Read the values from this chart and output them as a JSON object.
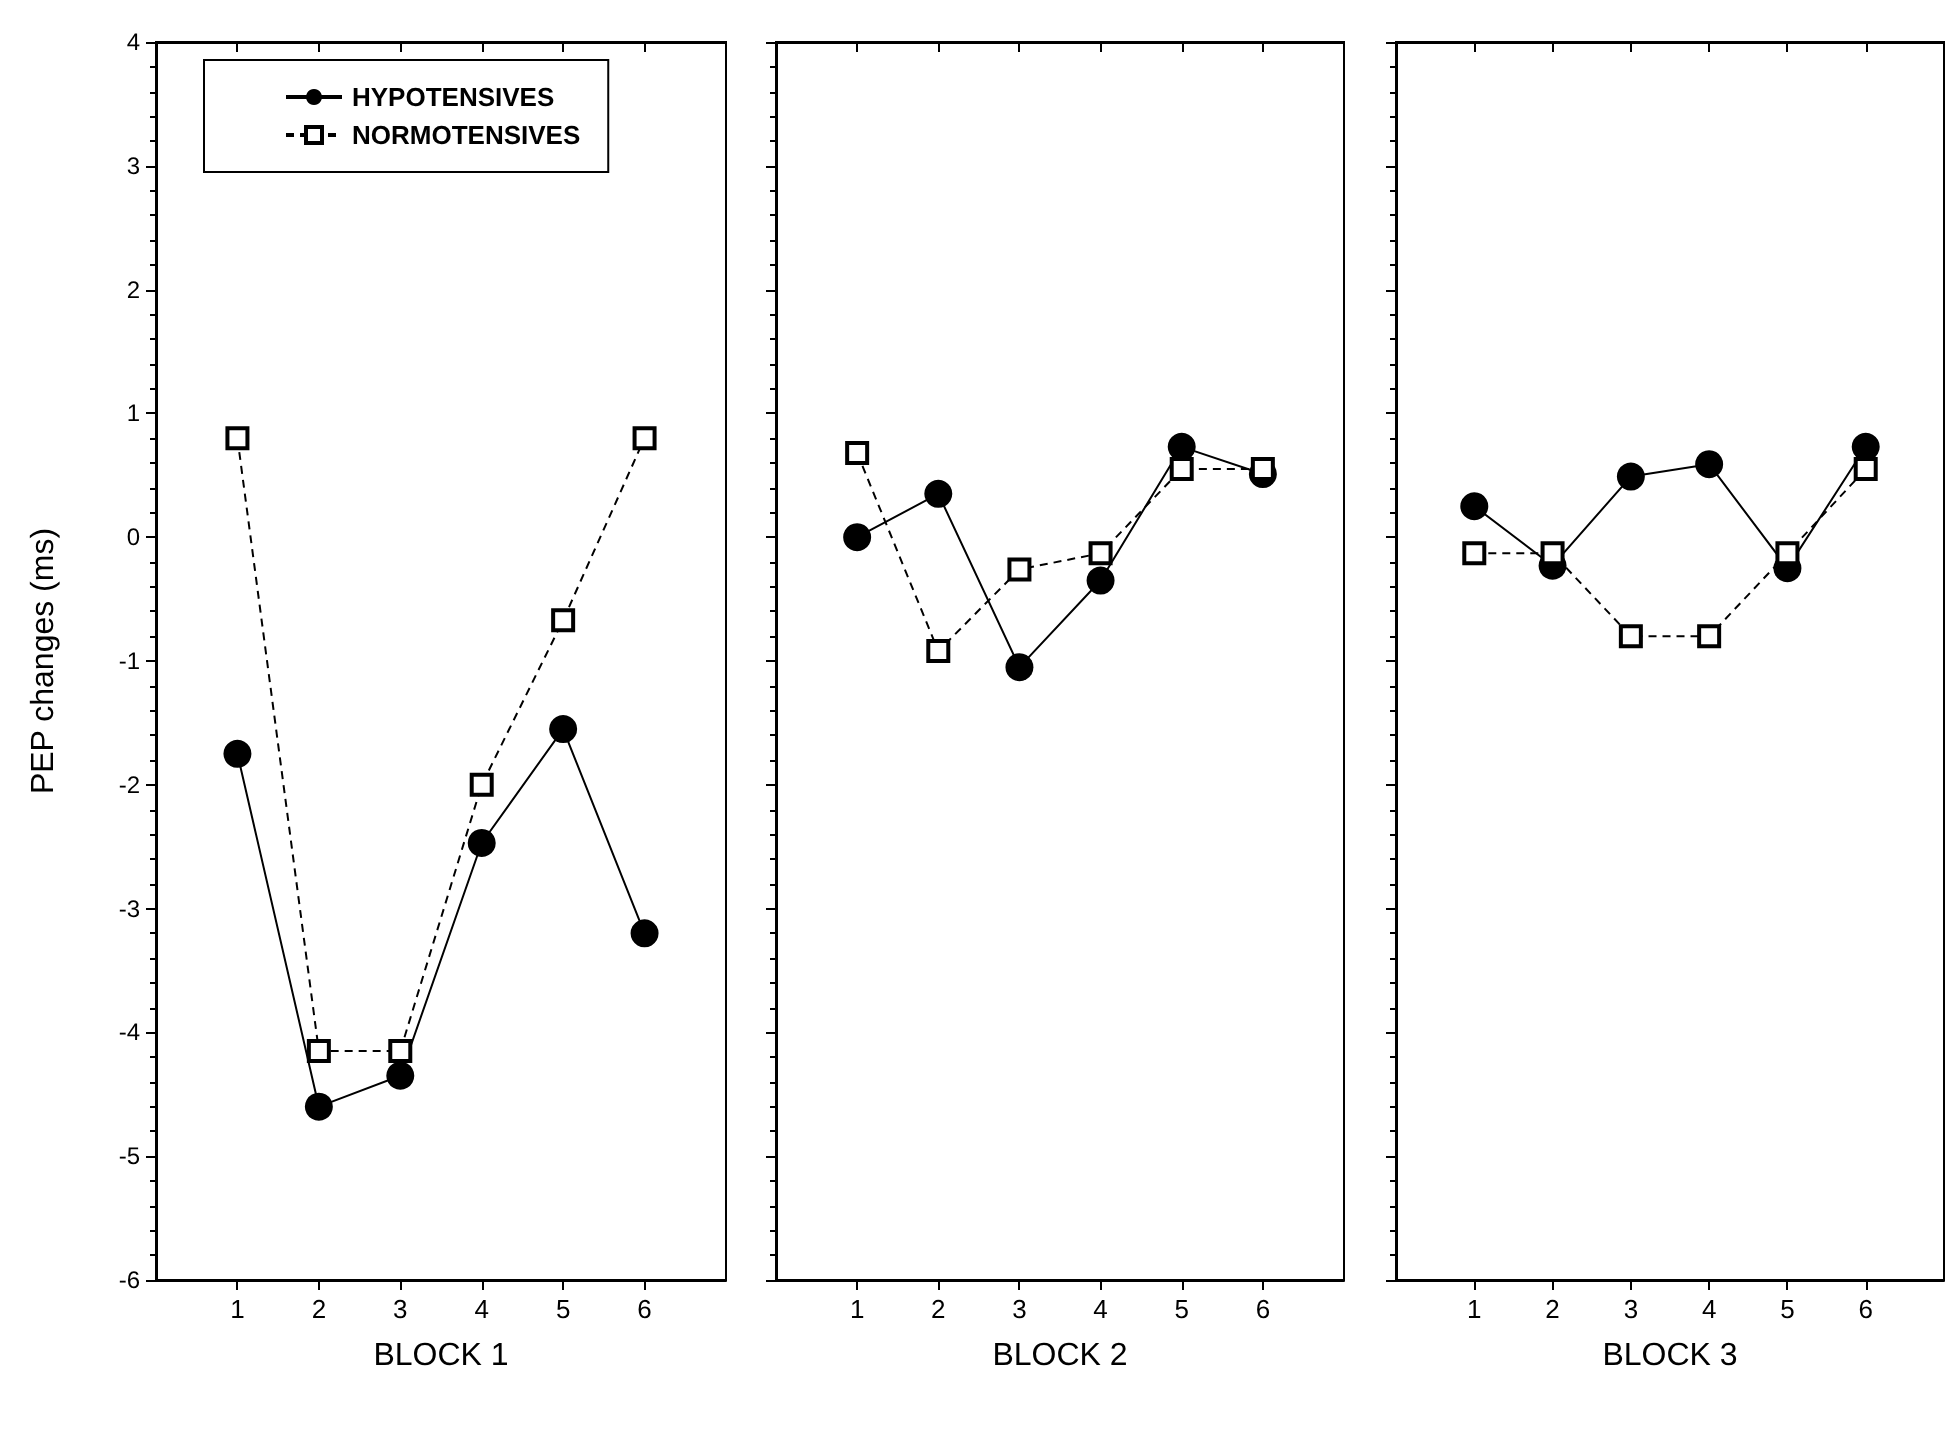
{
  "chart_data": [
    {
      "type": "line",
      "xlabel": "BLOCK 1",
      "ylabel": "PEP changes (ms)",
      "x": [
        1,
        2,
        3,
        4,
        5,
        6
      ],
      "xlim": [
        0,
        7
      ],
      "xticks": [
        1,
        2,
        3,
        4,
        5,
        6
      ],
      "ylim": [
        -6,
        4
      ],
      "yticks": [
        -6,
        -5,
        -4,
        -3,
        -2,
        -1,
        0,
        1,
        2,
        3,
        4
      ],
      "legend": "top left",
      "grid": false,
      "series": [
        {
          "name": "HYPOTENSIVES",
          "color": "#000000",
          "marker": "circle",
          "line_style": "solid",
          "values": [
            -1.75,
            -4.6,
            -4.35,
            -2.47,
            -1.55,
            -3.2
          ]
        },
        {
          "name": "NORMOTENSIVES",
          "color": "#000000",
          "marker": "square",
          "line_style": "dashed",
          "values": [
            0.8,
            -4.15,
            -4.15,
            -2.0,
            -0.67,
            0.8
          ]
        }
      ]
    },
    {
      "type": "line",
      "xlabel": "BLOCK 2",
      "x": [
        1,
        2,
        3,
        4,
        5,
        6
      ],
      "xlim": [
        0,
        7
      ],
      "xticks": [
        1,
        2,
        3,
        4,
        5,
        6
      ],
      "ylim": [
        -6,
        4
      ],
      "yticks": [
        -6,
        -5,
        -4,
        -3,
        -2,
        -1,
        0,
        1,
        2,
        3,
        4
      ],
      "tick_labels": "x",
      "grid": false,
      "series": [
        {
          "color": "#000000",
          "marker": "circle",
          "line_style": "solid",
          "values": [
            0,
            0.35,
            -1.05,
            -0.35,
            0.73,
            0.51
          ]
        },
        {
          "color": "#000000",
          "marker": "square",
          "line_style": "dashed",
          "values": [
            0.68,
            -0.92,
            -0.26,
            -0.13,
            0.55,
            0.55
          ]
        }
      ]
    },
    {
      "type": "line",
      "xlabel": "BLOCK 3",
      "x": [
        1,
        2,
        3,
        4,
        5,
        6
      ],
      "xlim": [
        0,
        7
      ],
      "xticks": [
        1,
        2,
        3,
        4,
        5,
        6
      ],
      "ylim": [
        -6,
        4
      ],
      "yticks": [
        -6,
        -5,
        -4,
        -3,
        -2,
        -1,
        0,
        1,
        2,
        3,
        4
      ],
      "tick_labels": "x",
      "grid": false,
      "series": [
        {
          "color": "#000000",
          "marker": "circle",
          "line_style": "solid",
          "values": [
            0.25,
            -0.23,
            0.49,
            0.59,
            -0.25,
            0.73
          ]
        },
        {
          "color": "#000000",
          "marker": "square",
          "line_style": "dashed",
          "values": [
            -0.13,
            -0.13,
            -0.8,
            -0.8,
            -0.13,
            0.55
          ]
        }
      ]
    }
  ]
}
